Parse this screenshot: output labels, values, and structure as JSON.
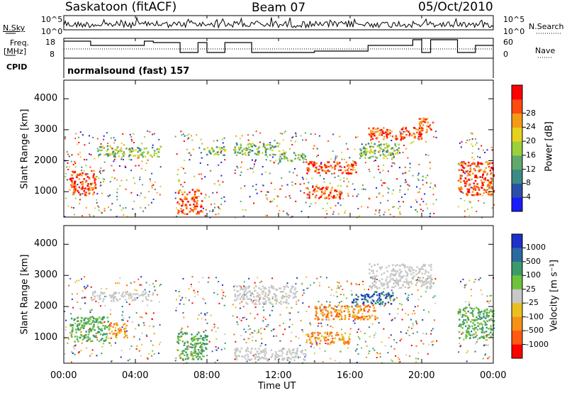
{
  "header": {
    "station": "Saskatoon (fitACF)",
    "beam": "Beam 07",
    "date": "05/Oct/2010"
  },
  "left_labels": {
    "nsky": "N.Sky",
    "freq_line1": "Freq.",
    "freq_line2": "[MHz]",
    "cpid": "CPID"
  },
  "right_labels": {
    "nsearch": "N.Search",
    "nave": "Nave"
  },
  "cpid_value": "normalsound (fast) 157",
  "strip_ticks": {
    "nsky_top": "10^5",
    "nsky_bottom": "10^0",
    "nsearch_top": "10^5",
    "nsearch_bottom": "10^0",
    "freq_top": "18",
    "freq_bottom": "8",
    "nave_top": "60",
    "nave_bottom": "0"
  },
  "x_axis": {
    "label": "Time UT",
    "ticks": [
      "00:00",
      "04:00",
      "08:00",
      "12:00",
      "16:00",
      "20:00",
      "00:00"
    ]
  },
  "chart_data": [
    {
      "type": "heatmap",
      "name": "power",
      "ylabel": "Slant Range [km]",
      "yticks": [
        "1000",
        "2000",
        "3000",
        "4000"
      ],
      "ylim": [
        180,
        4600
      ],
      "xlim": [
        0,
        24
      ],
      "colorbar": {
        "label": "Power [dB]",
        "ticks": [
          "4",
          "8",
          "12",
          "16",
          "20",
          "24",
          "28"
        ],
        "colors": [
          "#1a1aff",
          "#2b4fa8",
          "#3c8a86",
          "#5faa6a",
          "#9ccf3c",
          "#e6d21c",
          "#f59a16",
          "#ff4a10",
          "#ff0000"
        ]
      },
      "echo_regions": [
        {
          "t0": 0.3,
          "t1": 1.8,
          "r0": 900,
          "r1": 1700,
          "level": "high"
        },
        {
          "t0": 1.8,
          "t1": 3.2,
          "r0": 2150,
          "r1": 2500,
          "level": "mid"
        },
        {
          "t0": 3.2,
          "t1": 5.3,
          "r0": 2150,
          "r1": 2450,
          "level": "mid"
        },
        {
          "t0": 6.3,
          "t1": 7.7,
          "r0": 300,
          "r1": 1100,
          "level": "high"
        },
        {
          "t0": 7.8,
          "t1": 9.0,
          "r0": 2200,
          "r1": 2500,
          "level": "mid"
        },
        {
          "t0": 9.5,
          "t1": 12.0,
          "r0": 2200,
          "r1": 2600,
          "level": "mid"
        },
        {
          "t0": 12.0,
          "t1": 13.5,
          "r0": 2000,
          "r1": 2300,
          "level": "mid"
        },
        {
          "t0": 13.5,
          "t1": 15.5,
          "r0": 800,
          "r1": 1200,
          "level": "high"
        },
        {
          "t0": 13.5,
          "t1": 16.3,
          "r0": 1600,
          "r1": 2000,
          "level": "high"
        },
        {
          "t0": 16.5,
          "t1": 18.7,
          "r0": 2100,
          "r1": 2600,
          "level": "mid"
        },
        {
          "t0": 17.0,
          "t1": 20.0,
          "r0": 2700,
          "r1": 3100,
          "level": "high"
        },
        {
          "t0": 19.8,
          "t1": 20.6,
          "r0": 2900,
          "r1": 3400,
          "level": "high"
        },
        {
          "t0": 22.0,
          "t1": 24.0,
          "r0": 900,
          "r1": 2000,
          "level": "high"
        }
      ]
    },
    {
      "type": "heatmap",
      "name": "velocity",
      "ylabel": "Slant Range [km]",
      "yticks": [
        "1000",
        "2000",
        "3000",
        "4000"
      ],
      "ylim": [
        180,
        4600
      ],
      "xlim": [
        0,
        24
      ],
      "colorbar": {
        "label": "Velocity [m s⁻¹]",
        "ticks": [
          "1000",
          "500",
          "100",
          "25",
          "-25",
          "-100",
          "-500",
          "-1000"
        ],
        "colors": [
          "#1e30c8",
          "#2a6aa0",
          "#3c9a6a",
          "#6fc23c",
          "#c8c8c8",
          "#e8c020",
          "#f59018",
          "#ff5a10",
          "#ff0000"
        ]
      },
      "echo_regions": [
        {
          "t0": 0.3,
          "t1": 2.5,
          "r0": 900,
          "r1": 1700,
          "level": "green"
        },
        {
          "t0": 1.5,
          "t1": 5.0,
          "r0": 2200,
          "r1": 2500,
          "level": "grey"
        },
        {
          "t0": 2.5,
          "t1": 3.5,
          "r0": 1000,
          "r1": 1500,
          "level": "orange"
        },
        {
          "t0": 6.3,
          "t1": 8.0,
          "r0": 300,
          "r1": 1200,
          "level": "green"
        },
        {
          "t0": 9.5,
          "t1": 13.0,
          "r0": 2100,
          "r1": 2700,
          "level": "grey"
        },
        {
          "t0": 9.5,
          "t1": 13.5,
          "r0": 300,
          "r1": 700,
          "level": "grey"
        },
        {
          "t0": 13.5,
          "t1": 16.0,
          "r0": 800,
          "r1": 1200,
          "level": "orange"
        },
        {
          "t0": 14.0,
          "t1": 17.5,
          "r0": 1600,
          "r1": 2100,
          "level": "orange"
        },
        {
          "t0": 16.0,
          "t1": 18.5,
          "r0": 2100,
          "r1": 2500,
          "level": "blue"
        },
        {
          "t0": 17.0,
          "t1": 20.5,
          "r0": 2600,
          "r1": 3400,
          "level": "grey"
        },
        {
          "t0": 22.0,
          "t1": 24.0,
          "r0": 1000,
          "r1": 2000,
          "level": "green"
        }
      ]
    }
  ]
}
